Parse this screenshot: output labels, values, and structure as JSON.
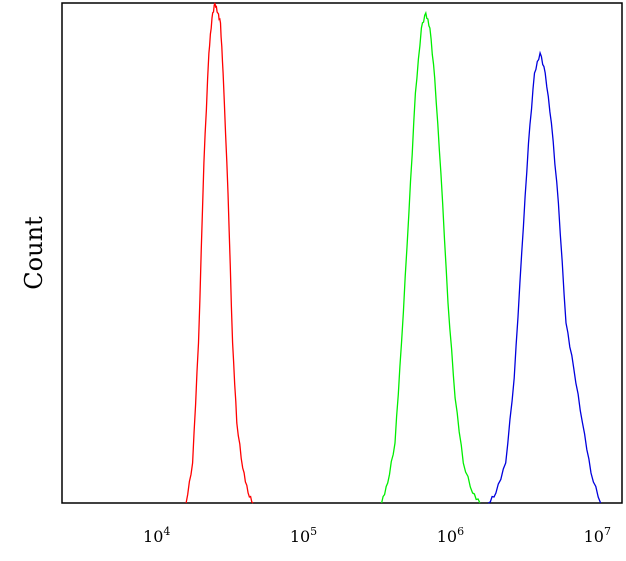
{
  "chart_data": {
    "type": "line",
    "title": "",
    "xlabel": "",
    "ylabel": "Count",
    "x_scale": "log",
    "xlim": [
      2000,
      13000000
    ],
    "ylim": [
      0,
      1.0
    ],
    "grid": false,
    "legend": "none",
    "x_ticks": [
      {
        "value": 10000,
        "base": "10",
        "exp": "4"
      },
      {
        "value": 100000,
        "base": "10",
        "exp": "5"
      },
      {
        "value": 1000000,
        "base": "10",
        "exp": "6"
      },
      {
        "value": 10000000,
        "base": "10",
        "exp": "7"
      }
    ],
    "series": [
      {
        "color": "#ff0000",
        "x": [
          14000,
          15500,
          17000,
          18500,
          20000,
          21000,
          22000,
          23000,
          24000,
          25000,
          27000,
          29000,
          31000,
          34000,
          37000,
          40000
        ],
        "y": [
          0.0,
          0.08,
          0.32,
          0.68,
          0.9,
          0.97,
          1.0,
          0.98,
          0.96,
          0.86,
          0.62,
          0.32,
          0.16,
          0.07,
          0.02,
          0.0
        ]
      },
      {
        "color": "#00ee00",
        "x": [
          300000,
          330000,
          370000,
          410000,
          460000,
          510000,
          560000,
          600000,
          640000,
          690000,
          760000,
          850000,
          950000,
          1080000,
          1250000,
          1400000
        ],
        "y": [
          0.0,
          0.04,
          0.12,
          0.32,
          0.58,
          0.82,
          0.95,
          0.98,
          0.95,
          0.85,
          0.66,
          0.4,
          0.21,
          0.08,
          0.02,
          0.0
        ]
      },
      {
        "color": "#0000dd",
        "x": [
          1600000,
          1800000,
          2100000,
          2400000,
          2700000,
          3000000,
          3300000,
          3600000,
          3900000,
          4300000,
          4800000,
          5400000,
          6100000,
          7000000,
          8000000,
          9300000
        ],
        "y": [
          0.0,
          0.02,
          0.08,
          0.25,
          0.5,
          0.72,
          0.86,
          0.9,
          0.86,
          0.76,
          0.6,
          0.36,
          0.27,
          0.16,
          0.06,
          0.0
        ]
      }
    ]
  }
}
